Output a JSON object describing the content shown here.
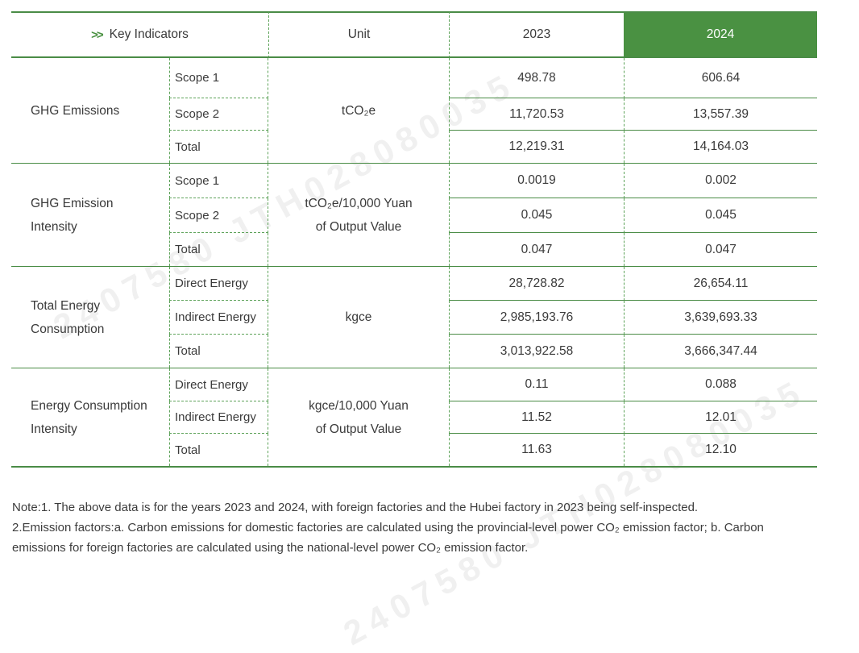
{
  "header": {
    "chevrons": ">>",
    "key_indicators": "Key Indicators",
    "unit": "Unit",
    "year_2023": "2023",
    "year_2024": "2024"
  },
  "colors": {
    "accent_green_fill": "#4a9142",
    "line_green": "#4a8c46",
    "dashed_green": "#5ea35a",
    "header_2024_text": "#ffffff",
    "body_text": "#3a3a3a"
  },
  "watermark": {
    "text": "2407580 JTH028080035"
  },
  "groups": [
    {
      "category": "GHG Emissions",
      "unit": "tCO₂e",
      "rows": [
        {
          "label": "Scope 1",
          "v2023": "498.78",
          "v2024": "606.64"
        },
        {
          "label": "Scope 2",
          "v2023": "11,720.53",
          "v2024": "13,557.39"
        },
        {
          "label": "Total",
          "v2023": "12,219.31",
          "v2024": "14,164.03"
        }
      ]
    },
    {
      "category": "GHG Emission Intensity",
      "unit": "tCO₂e/10,000 Yuan\nof Output Value",
      "rows": [
        {
          "label": "Scope 1",
          "v2023": "0.0019",
          "v2024": "0.002"
        },
        {
          "label": "Scope 2",
          "v2023": "0.045",
          "v2024": "0.045"
        },
        {
          "label": "Total",
          "v2023": "0.047",
          "v2024": "0.047"
        }
      ]
    },
    {
      "category": "Total Energy Consumption",
      "unit": "kgce",
      "rows": [
        {
          "label": "Direct Energy",
          "v2023": "28,728.82",
          "v2024": "26,654.11"
        },
        {
          "label": "Indirect Energy",
          "v2023": "2,985,193.76",
          "v2024": "3,639,693.33"
        },
        {
          "label": "Total",
          "v2023": "3,013,922.58",
          "v2024": "3,666,347.44"
        }
      ]
    },
    {
      "category": "Energy Consumption Intensity",
      "unit": "kgce/10,000 Yuan\nof Output Value",
      "rows": [
        {
          "label": "Direct Energy",
          "v2023": "0.11",
          "v2024": "0.088"
        },
        {
          "label": "Indirect Energy",
          "v2023": "11.52",
          "v2024": "12.01"
        },
        {
          "label": "Total",
          "v2023": "11.63",
          "v2024": "12.10"
        }
      ]
    }
  ],
  "notes": {
    "line1": "Note:1. The above data is for the years 2023 and 2024, with foreign factories and the Hubei factory in 2023 being self-inspected.",
    "line2": "2.Emission factors:a. Carbon emissions for domestic factories are calculated using the provincial-level power CO₂ emission factor;  b. Carbon emissions for foreign factories are calculated using the national-level power CO₂ emission factor."
  }
}
